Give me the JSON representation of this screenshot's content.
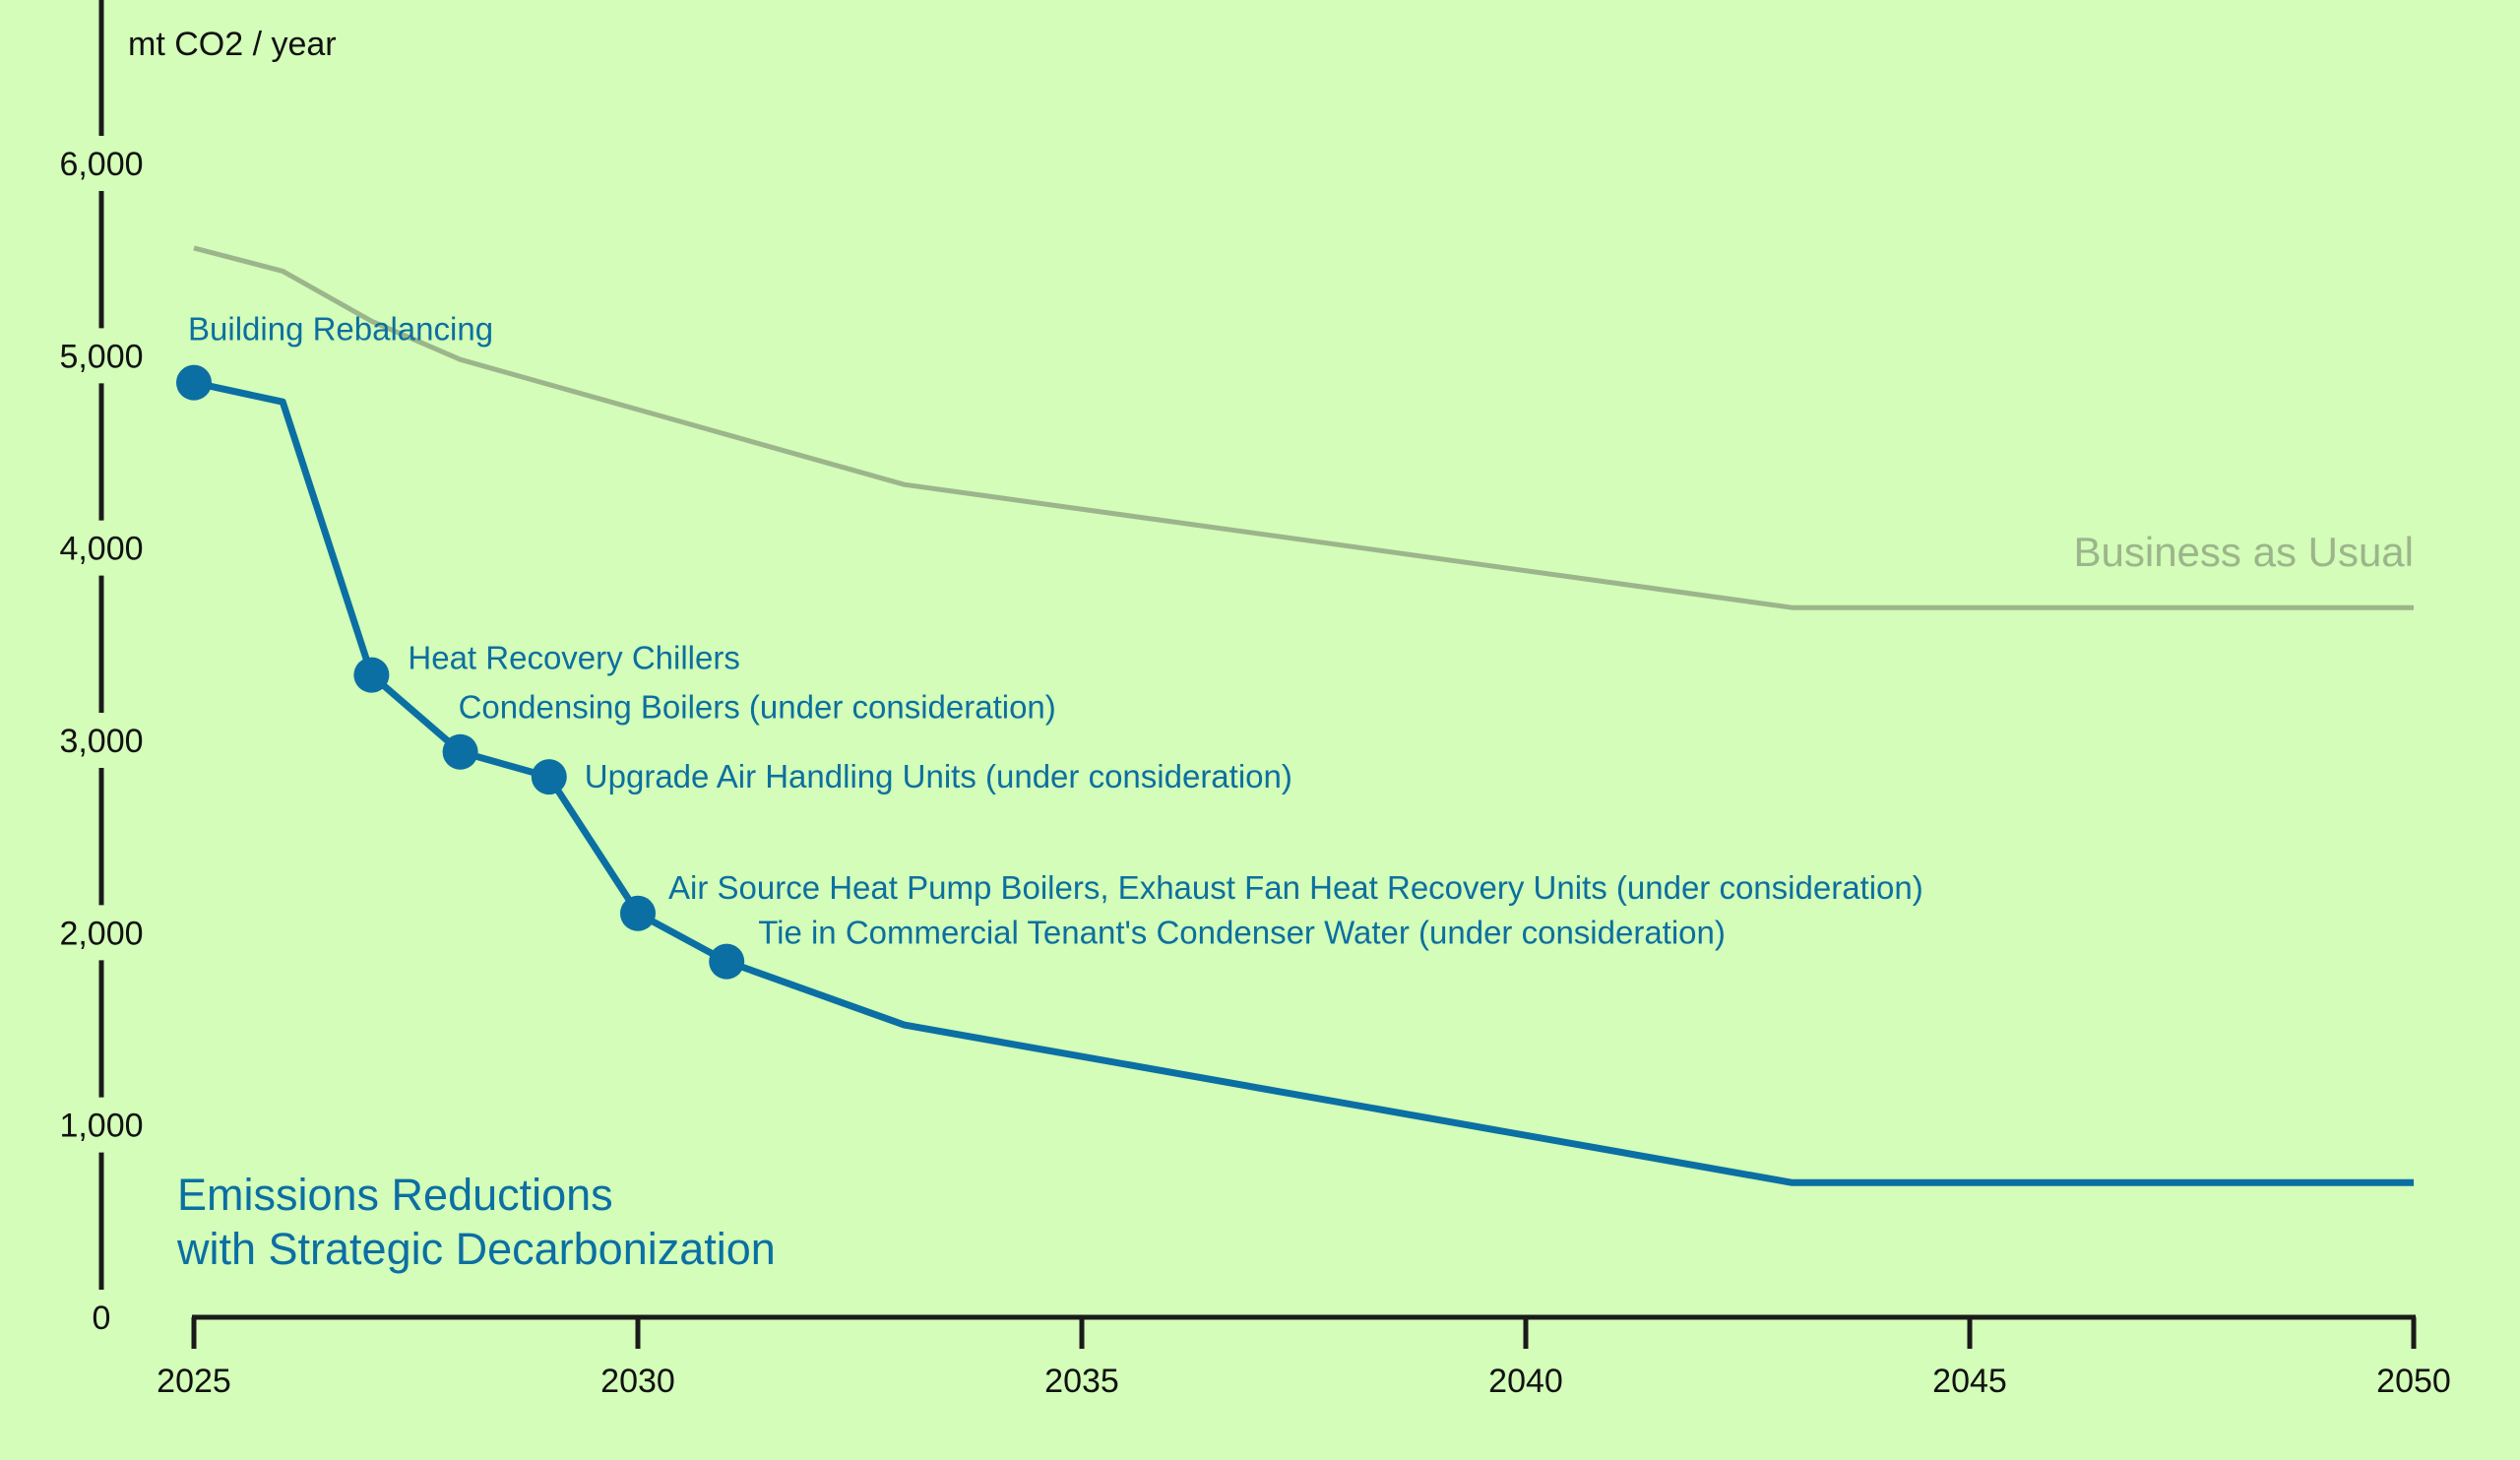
{
  "chart_data": {
    "type": "line",
    "unit_label": "mt CO2 / year",
    "xlim": [
      2025,
      2050
    ],
    "ylim": [
      0,
      6000
    ],
    "x_ticks": [
      "2025",
      "2030",
      "2035",
      "2040",
      "2045",
      "2050"
    ],
    "y_ticks": [
      "0",
      "1,000",
      "2,000",
      "3,000",
      "4,000",
      "5,000",
      "6,000"
    ],
    "grid": false,
    "colors": {
      "background": "#d3fdb8",
      "axis": "#1a1a1a",
      "strategic": "#0b6fa3",
      "bau": "#9cb58c"
    },
    "series": [
      {
        "key": "bau",
        "name": "Business as Usual",
        "x": [
          2025,
          2026,
          2027,
          2028,
          2033,
          2043,
          2050
        ],
        "y": [
          5560,
          5440,
          5180,
          4980,
          4330,
          3690,
          3690
        ]
      },
      {
        "key": "strategic",
        "name": "Emissions Reductions with Strategic Decarbonization",
        "name_lines": [
          "Emissions Reductions",
          "with Strategic Decarbonization"
        ],
        "x": [
          2025,
          2026,
          2027,
          2028,
          2029,
          2030,
          2031,
          2033,
          2043,
          2050
        ],
        "y": [
          4860,
          4760,
          3340,
          2940,
          2810,
          2100,
          1850,
          1520,
          700,
          700
        ]
      }
    ],
    "milestones": [
      {
        "x": 2025,
        "y": 4860,
        "label": "Building Rebalancing"
      },
      {
        "x": 2027,
        "y": 3340,
        "label": "Heat Recovery Chillers"
      },
      {
        "x": 2028,
        "y": 2940,
        "label": "Condensing Boilers (under consideration)"
      },
      {
        "x": 2029,
        "y": 2810,
        "label": "Upgrade Air Handling Units (under consideration)"
      },
      {
        "x": 2030,
        "y": 2100,
        "label": "Air Source Heat Pump Boilers, Exhaust Fan Heat Recovery Units (under consideration)"
      },
      {
        "x": 2031,
        "y": 1850,
        "label": "Tie in Commercial Tenant's Condenser Water (under consideration)"
      }
    ]
  }
}
